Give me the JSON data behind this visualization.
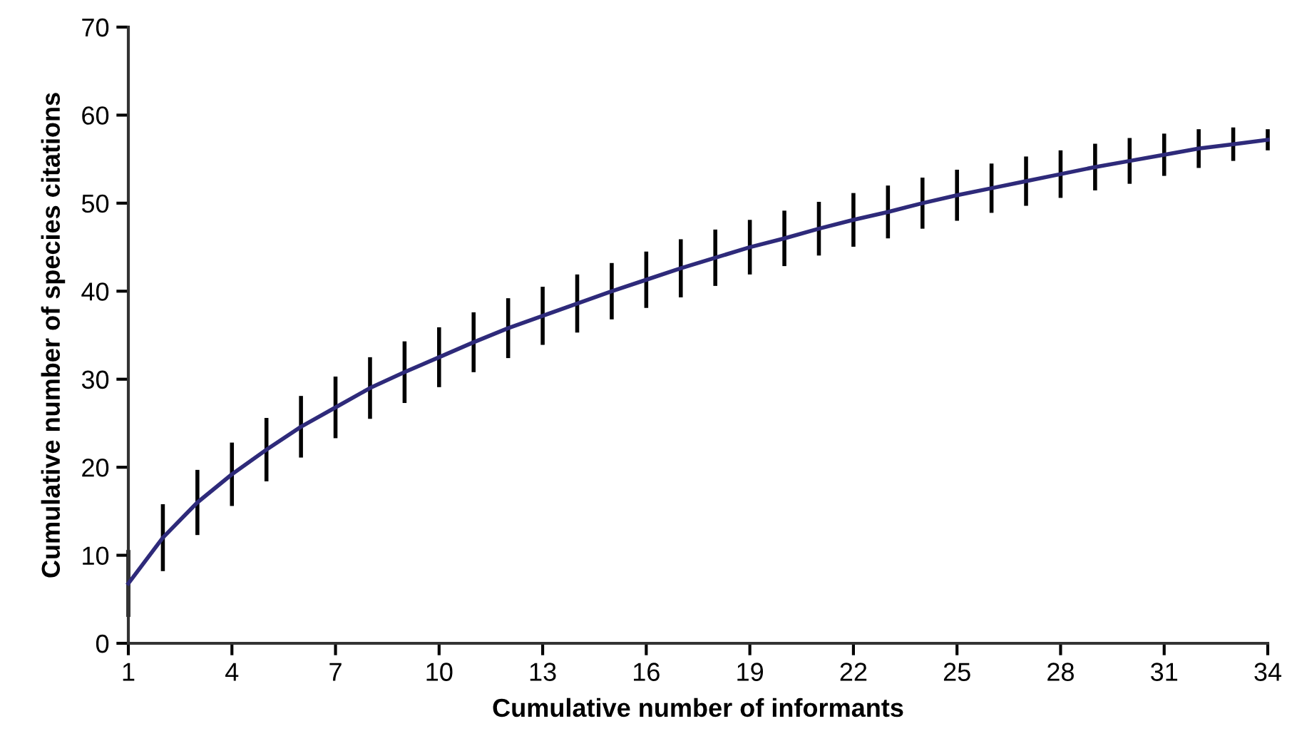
{
  "chart_data": {
    "type": "line",
    "xlabel": "Cumulative number of informants",
    "ylabel": "Cumulative number of species citations",
    "x": [
      1,
      2,
      3,
      4,
      5,
      6,
      7,
      8,
      9,
      10,
      11,
      12,
      13,
      14,
      15,
      16,
      17,
      18,
      19,
      20,
      21,
      22,
      23,
      24,
      25,
      26,
      27,
      28,
      29,
      30,
      31,
      32,
      33,
      34
    ],
    "series": [
      {
        "color": "#2e2a7a",
        "values": [
          6.8,
          12,
          16,
          19.2,
          22,
          24.6,
          26.8,
          29,
          30.8,
          32.5,
          34.2,
          35.8,
          37.2,
          38.6,
          40,
          41.3,
          42.6,
          43.8,
          45,
          46,
          47.1,
          48.1,
          49,
          50,
          50.9,
          51.7,
          52.5,
          53.3,
          54.1,
          54.8,
          55.5,
          56.2,
          56.7,
          57.2
        ],
        "errors": [
          3.8,
          3.8,
          3.7,
          3.6,
          3.6,
          3.5,
          3.5,
          3.5,
          3.5,
          3.4,
          3.4,
          3.4,
          3.3,
          3.3,
          3.2,
          3.2,
          3.3,
          3.2,
          3.1,
          3.15,
          3.05,
          3.05,
          3,
          2.9,
          2.9,
          2.8,
          2.8,
          2.7,
          2.65,
          2.6,
          2.4,
          2.2,
          1.9,
          1.2
        ]
      }
    ],
    "xlim": [
      1,
      34
    ],
    "xticks": [
      1,
      4,
      7,
      10,
      13,
      16,
      19,
      22,
      25,
      28,
      31,
      34
    ],
    "ylim": [
      0,
      70
    ],
    "yticks": [
      0,
      10,
      20,
      30,
      40,
      50,
      60,
      70
    ],
    "grid": false,
    "legend": false,
    "marker": "none",
    "line_style": "solid"
  }
}
